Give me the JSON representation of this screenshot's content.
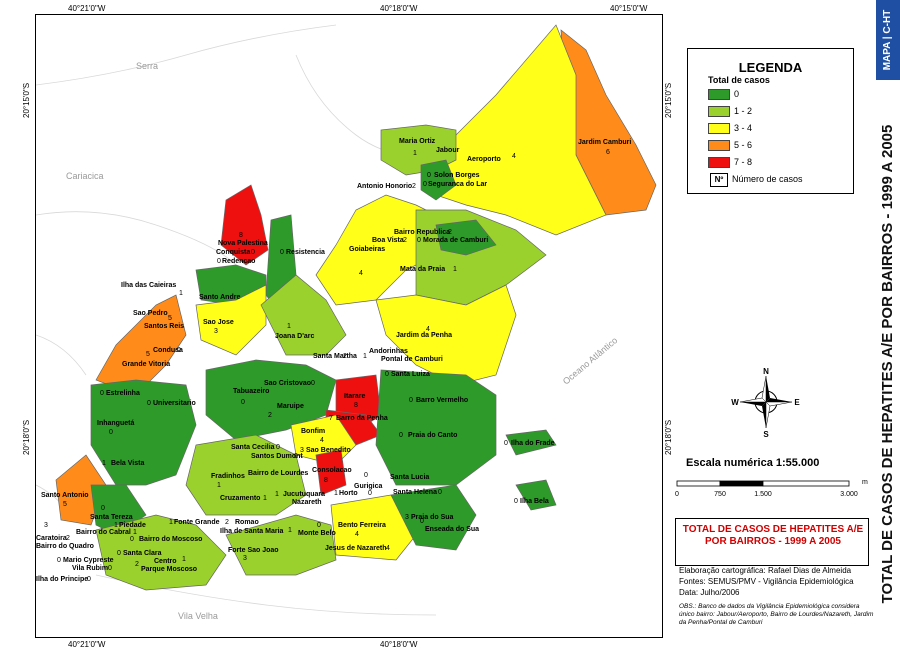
{
  "coordinates": {
    "top": [
      "40°21'0\"W",
      "40°18'0\"W",
      "40°15'0\"W"
    ],
    "bottom": [
      "40°21'0\"W",
      "40°18'0\"W"
    ],
    "left": [
      "20°15'0\"S",
      "20°18'0\"S"
    ],
    "right": [
      "20°15'0\"S",
      "20°18'0\"S"
    ]
  },
  "map_labels": {
    "serra": "Serra",
    "cariacica": "Cariacica",
    "vila_velha": "Vila Velha",
    "oceano": "Oceano Atlântico"
  },
  "colors": {
    "c0": "#2e9a2a",
    "c12": "#9bd12d",
    "c34": "#ffff19",
    "c56": "#ff8c1a",
    "c78": "#ee0f0f",
    "badge": "#1f4fa3",
    "title_red": "#d00000"
  },
  "neighborhoods": [
    {
      "name": "Maria Ortiz",
      "count": "1",
      "class": "c12"
    },
    {
      "name": "Jabour",
      "count": "",
      "class": "c12"
    },
    {
      "name": "Aeroporto",
      "count": "4",
      "class": "c34"
    },
    {
      "name": "Jardim Camburi",
      "count": "6",
      "class": "c56"
    },
    {
      "name": "Solon Borges",
      "count": "0",
      "class": "c0"
    },
    {
      "name": "Antonio Honorio",
      "count": "2",
      "class": "c12"
    },
    {
      "name": "Seguranca do Lar",
      "count": "0",
      "class": "c0"
    },
    {
      "name": "Nova Palestina",
      "count": "8",
      "class": "c78"
    },
    {
      "name": "Resistencia",
      "count": "0",
      "class": "c0"
    },
    {
      "name": "Bairro Republica",
      "count": "2",
      "class": "c12"
    },
    {
      "name": "Boa Vista",
      "count": "2",
      "class": "c12"
    },
    {
      "name": "Morada de Camburi",
      "count": "0",
      "class": "c0"
    },
    {
      "name": "Goiabeiras",
      "count": "4",
      "class": "c34"
    },
    {
      "name": "Conquista",
      "count": "0",
      "class": "c0"
    },
    {
      "name": "Redencao",
      "count": "0",
      "class": "c0"
    },
    {
      "name": "Ilha das Caieiras",
      "count": "1",
      "class": "c12"
    },
    {
      "name": "Santo Andre",
      "count": "",
      "class": "c0"
    },
    {
      "name": "Mata da Praia",
      "count": "1",
      "class": "c12"
    },
    {
      "name": "Sao Pedro",
      "count": "5",
      "class": "c56"
    },
    {
      "name": "Santos Reis",
      "count": "",
      "class": "c56"
    },
    {
      "name": "Sao Jose",
      "count": "3",
      "class": "c34"
    },
    {
      "name": "Joana D'arc",
      "count": "1",
      "class": "c12"
    },
    {
      "name": "Jardim da Penha",
      "count": "4",
      "class": "c34"
    },
    {
      "name": "Grande Vitoria",
      "count": "5",
      "class": "c56"
    },
    {
      "name": "Condusa",
      "count": "0",
      "class": "c0"
    },
    {
      "name": "Santa Martha",
      "count": "2",
      "class": "c12"
    },
    {
      "name": "Andorinhas",
      "count": "1",
      "class": "c12"
    },
    {
      "name": "Pontal de Camburi",
      "count": "",
      "class": "c34"
    },
    {
      "name": "Santa Luiza",
      "count": "0",
      "class": "c0"
    },
    {
      "name": "Estrelinha",
      "count": "0",
      "class": "c0"
    },
    {
      "name": "Sao Cristovao",
      "count": "0",
      "class": "c0"
    },
    {
      "name": "Tabuazeiro",
      "count": "0",
      "class": "c0"
    },
    {
      "name": "Universitario",
      "count": "0",
      "class": "c0"
    },
    {
      "name": "Itarare",
      "count": "8",
      "class": "c78"
    },
    {
      "name": "Maruipe",
      "count": "2",
      "class": "c12"
    },
    {
      "name": "Barro Vermelho",
      "count": "0",
      "class": "c0"
    },
    {
      "name": "Barro da Penha",
      "count": "7",
      "class": "c78"
    },
    {
      "name": "Inhanguetá",
      "count": "0",
      "class": "c0"
    },
    {
      "name": "Bonfim",
      "count": "4",
      "class": "c34"
    },
    {
      "name": "Praia do Canto",
      "count": "0",
      "class": "c0"
    },
    {
      "name": "Ilha do Frade",
      "count": "0",
      "class": "c0"
    },
    {
      "name": "Santa Cecilia",
      "count": "0",
      "class": "c0"
    },
    {
      "name": "Santos Dumont",
      "count": "0",
      "class": "c0"
    },
    {
      "name": "Sao Benedito",
      "count": "3",
      "class": "c34"
    },
    {
      "name": "Bela Vista",
      "count": "1",
      "class": "c12"
    },
    {
      "name": "Fradinhos",
      "count": "1",
      "class": "c12"
    },
    {
      "name": "Bairro de Lourdes",
      "count": "",
      "class": "c0"
    },
    {
      "name": "Consolacao",
      "count": "",
      "class": "c78"
    },
    {
      "name": "Santa Lucia",
      "count": "0",
      "class": "c0"
    },
    {
      "name": "Gurigica",
      "count": "0",
      "class": "c0"
    },
    {
      "name": "Horto",
      "count": "1",
      "class": "c12"
    },
    {
      "name": "Santa Helena",
      "count": "0",
      "class": "c0"
    },
    {
      "name": "Ilha Bela",
      "count": "0",
      "class": "c0"
    },
    {
      "name": "Cruzamento",
      "count": "1",
      "class": "c12"
    },
    {
      "name": "Jucutuquara",
      "count": "1",
      "class": "c12"
    },
    {
      "name": "Nazareth",
      "count": "8",
      "class": "c78"
    },
    {
      "name": "Santo Antonio",
      "count": "5",
      "class": "c56"
    },
    {
      "name": "Santa Tereza",
      "count": "0",
      "class": "c0"
    },
    {
      "name": "Piedade",
      "count": "1",
      "class": "c12"
    },
    {
      "name": "Fonte Grande",
      "count": "1",
      "class": "c12"
    },
    {
      "name": "Romao",
      "count": "2",
      "class": "c12"
    },
    {
      "name": "Ilha de Santa Maria",
      "count": "1",
      "class": "c12"
    },
    {
      "name": "Monte Belo",
      "count": "0",
      "class": "c0"
    },
    {
      "name": "Bento Ferreira",
      "count": "4",
      "class": "c34"
    },
    {
      "name": "Praia do Sua",
      "count": "3",
      "class": "c34"
    },
    {
      "name": "Enseada do Sua",
      "count": "0",
      "class": "c0"
    },
    {
      "name": "Caratoira",
      "count": "3",
      "class": "c34"
    },
    {
      "name": "Bairro do Cabral",
      "count": "1",
      "class": "c12"
    },
    {
      "name": "Bairro do Moscoso",
      "count": "0",
      "class": "c0"
    },
    {
      "name": "Bairro do Quadro",
      "count": "2",
      "class": "c12"
    },
    {
      "name": "Santa Clara",
      "count": "0",
      "class": "c0"
    },
    {
      "name": "Mario Cypreste",
      "count": "0",
      "class": "c0"
    },
    {
      "name": "Vila Rubim",
      "count": "0",
      "class": "c0"
    },
    {
      "name": "Centro",
      "count": "2",
      "class": "c12"
    },
    {
      "name": "Parque Moscoso",
      "count": "1",
      "class": "c12"
    },
    {
      "name": "Forte Sao Joao",
      "count": "3",
      "class": "c34"
    },
    {
      "name": "Jesus de Nazareth",
      "count": "4",
      "class": "c34"
    },
    {
      "name": "Ilha do Principe",
      "count": "0",
      "class": "c0"
    }
  ],
  "legend": {
    "title": "LEGENDA",
    "subtitle": "Total de casos",
    "items": [
      {
        "label": "0",
        "color": "#2e9a2a"
      },
      {
        "label": "1 - 2",
        "color": "#9bd12d"
      },
      {
        "label": "3 - 4",
        "color": "#ffff19"
      },
      {
        "label": "5 - 6",
        "color": "#ff8c1a"
      },
      {
        "label": "7 - 8",
        "color": "#ee0f0f"
      }
    ],
    "number_symbol": "Nº",
    "number_label": "Número de casos"
  },
  "compass": {
    "n": "N",
    "s": "S",
    "e": "E",
    "w": "W"
  },
  "scale": {
    "title": "Escala numérica   1:55.000",
    "ticks": [
      "0",
      "750",
      "1.500",
      "3.000"
    ],
    "unit": "m"
  },
  "map_title": "TOTAL DE CASOS DE HEPATITES A/E POR BAIRROS - 1999 A 2005",
  "credits": {
    "elaboration": "Elaboração cartográfica: Rafael Dias de Almeida",
    "sources": "Fontes: SEMUS/PMV - Vigilância Epidemiológica",
    "date": "Data: Julho/2006",
    "obs": "OBS.: Banco de dados da Vigilância Epidemiológica considera único bairro: Jabour/Aeroporto, Bairro de Lourdes/Nazareth, Jardim da Penha/Pontal de Camburi"
  },
  "side": {
    "badge": "MAPA | C-HT",
    "title": "TOTAL DE CASOS DE HEPATITES A/E POR BAIRROS - 1999 A 2005"
  }
}
